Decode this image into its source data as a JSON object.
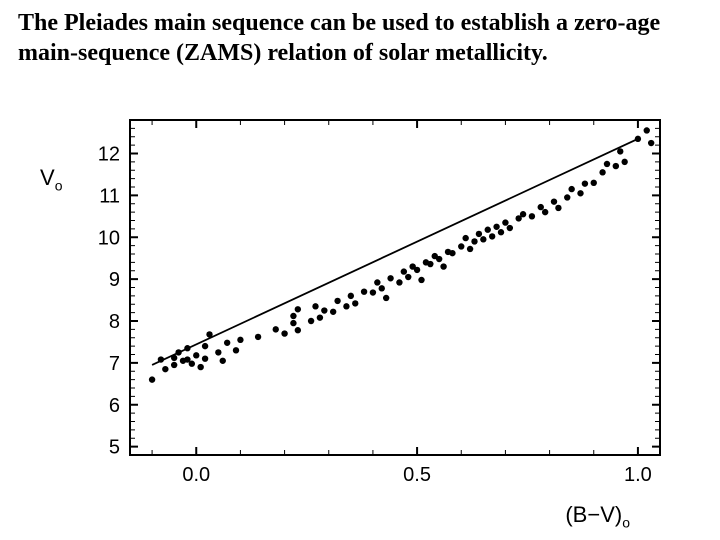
{
  "title_text": "The Pleiades main sequence can be used to establish a zero-age main-sequence (ZAMS) relation of solar metallicity.",
  "chart": {
    "type": "scatter",
    "title_fontsize": 24,
    "background_color": "#ffffff",
    "plot_border_color": "#000000",
    "plot_border_width": 2,
    "marker_color": "#000000",
    "marker_radius": 3.2,
    "line_color": "#000000",
    "line_width": 1.8,
    "axis_font": "Arial",
    "axis_fontsize": 20,
    "tick_fontsize": 20,
    "x": {
      "label": "(B−V)",
      "label_sub": "o",
      "lim": [
        -0.15,
        1.05
      ],
      "ticks": [
        0.0,
        0.5,
        1.0
      ],
      "tick_labels": [
        "0.0",
        "0.5",
        "1.0"
      ],
      "minor_step": 0.1
    },
    "y": {
      "label": "V",
      "label_sub": "o",
      "lim": [
        12.8,
        4.8
      ],
      "ticks": [
        5,
        6,
        7,
        8,
        9,
        10,
        11,
        12
      ],
      "tick_labels": [
        "5",
        "6",
        "7",
        "8",
        "9",
        "10",
        "11",
        "12"
      ],
      "minor_step": 0.2
    },
    "fit_line": {
      "x0": -0.1,
      "y0": 6.95,
      "x1": 1.0,
      "y1": 12.35
    },
    "points": [
      [
        -0.1,
        6.6
      ],
      [
        -0.08,
        7.08
      ],
      [
        -0.07,
        6.85
      ],
      [
        -0.05,
        7.12
      ],
      [
        -0.05,
        6.95
      ],
      [
        -0.04,
        7.25
      ],
      [
        -0.03,
        7.05
      ],
      [
        -0.02,
        7.08
      ],
      [
        -0.02,
        7.35
      ],
      [
        -0.01,
        6.98
      ],
      [
        0.0,
        7.18
      ],
      [
        0.01,
        6.9
      ],
      [
        0.02,
        7.1
      ],
      [
        0.02,
        7.4
      ],
      [
        0.03,
        7.68
      ],
      [
        0.05,
        7.25
      ],
      [
        0.06,
        7.05
      ],
      [
        0.07,
        7.48
      ],
      [
        0.09,
        7.3
      ],
      [
        0.1,
        7.55
      ],
      [
        0.14,
        7.62
      ],
      [
        0.18,
        7.8
      ],
      [
        0.2,
        7.7
      ],
      [
        0.22,
        7.95
      ],
      [
        0.22,
        8.12
      ],
      [
        0.23,
        7.78
      ],
      [
        0.23,
        8.28
      ],
      [
        0.26,
        8.0
      ],
      [
        0.27,
        8.35
      ],
      [
        0.28,
        8.08
      ],
      [
        0.29,
        8.25
      ],
      [
        0.31,
        8.22
      ],
      [
        0.32,
        8.48
      ],
      [
        0.34,
        8.35
      ],
      [
        0.35,
        8.6
      ],
      [
        0.36,
        8.42
      ],
      [
        0.38,
        8.7
      ],
      [
        0.4,
        8.68
      ],
      [
        0.41,
        8.92
      ],
      [
        0.42,
        8.78
      ],
      [
        0.43,
        8.55
      ],
      [
        0.44,
        9.02
      ],
      [
        0.46,
        8.92
      ],
      [
        0.47,
        9.18
      ],
      [
        0.48,
        9.05
      ],
      [
        0.49,
        9.3
      ],
      [
        0.5,
        9.22
      ],
      [
        0.51,
        8.98
      ],
      [
        0.52,
        9.4
      ],
      [
        0.53,
        9.36
      ],
      [
        0.54,
        9.55
      ],
      [
        0.55,
        9.48
      ],
      [
        0.56,
        9.3
      ],
      [
        0.57,
        9.65
      ],
      [
        0.58,
        9.62
      ],
      [
        0.6,
        9.78
      ],
      [
        0.61,
        9.98
      ],
      [
        0.62,
        9.72
      ],
      [
        0.63,
        9.9
      ],
      [
        0.64,
        10.08
      ],
      [
        0.65,
        9.95
      ],
      [
        0.66,
        10.18
      ],
      [
        0.67,
        10.02
      ],
      [
        0.68,
        10.25
      ],
      [
        0.69,
        10.12
      ],
      [
        0.7,
        10.35
      ],
      [
        0.71,
        10.22
      ],
      [
        0.73,
        10.45
      ],
      [
        0.74,
        10.55
      ],
      [
        0.76,
        10.5
      ],
      [
        0.78,
        10.72
      ],
      [
        0.79,
        10.6
      ],
      [
        0.81,
        10.85
      ],
      [
        0.82,
        10.7
      ],
      [
        0.84,
        10.95
      ],
      [
        0.85,
        11.15
      ],
      [
        0.87,
        11.05
      ],
      [
        0.88,
        11.28
      ],
      [
        0.9,
        11.3
      ],
      [
        0.92,
        11.55
      ],
      [
        0.93,
        11.75
      ],
      [
        0.95,
        11.7
      ],
      [
        0.96,
        12.05
      ],
      [
        0.97,
        11.8
      ],
      [
        1.0,
        12.35
      ],
      [
        1.03,
        12.25
      ],
      [
        1.02,
        12.55
      ]
    ]
  }
}
